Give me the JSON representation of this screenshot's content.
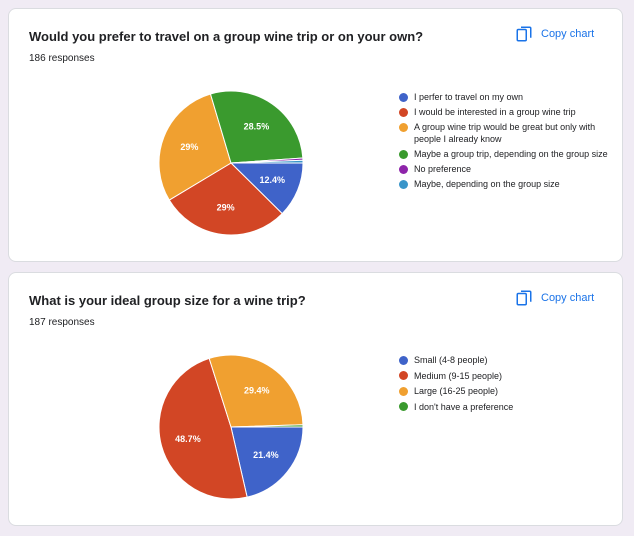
{
  "copy_label": "Copy chart",
  "chart_data": [
    {
      "type": "pie",
      "title": "Would you prefer to travel on a group wine trip or on your own?",
      "responses": "186 responses",
      "categories": [
        "I perfer to travel on my own",
        "I would be interested in a group wine trip",
        "A group wine trip would be great but only with people I already know",
        "Maybe a group trip, depending on the group size",
        "No preference",
        "Maybe, depending on the group size"
      ],
      "values": [
        12.4,
        29,
        29,
        28.5,
        0.5,
        0.6
      ],
      "data_labels": [
        "12.4%",
        "29%",
        "29%",
        "28.5%",
        "",
        ""
      ],
      "colors": [
        "#3f63c9",
        "#d24625",
        "#f0a030",
        "#3a9a2e",
        "#8e24aa",
        "#3a95c9"
      ],
      "legend_position": "right"
    },
    {
      "type": "pie",
      "title": "What is your ideal group size for a wine trip?",
      "responses": "187 responses",
      "categories": [
        "Small (4-8 people)",
        "Medium (9-15 people)",
        "Large (16-25 people)",
        "I don't have a preference"
      ],
      "values": [
        21.4,
        48.7,
        29.4,
        0.5
      ],
      "data_labels": [
        "21.4%",
        "48.7%",
        "29.4%",
        ""
      ],
      "colors": [
        "#3f63c9",
        "#d24625",
        "#f0a030",
        "#3a9a2e"
      ],
      "legend_position": "right"
    }
  ]
}
